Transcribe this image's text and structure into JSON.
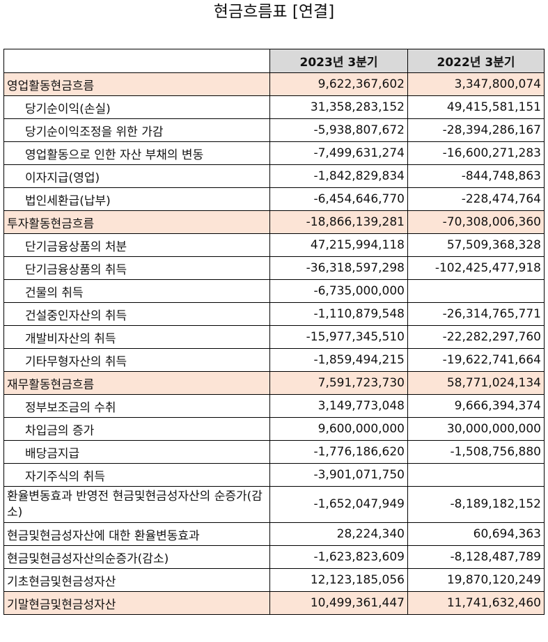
{
  "title": "현금흐름표 [연결]",
  "columns": [
    "2023년 3분기",
    "2022년 3분기"
  ],
  "rows": [
    {
      "label": "영업활동현금흐름",
      "v1": "9,622,367,602",
      "v2": "3,347,800,074",
      "section": true
    },
    {
      "label": "당기순이익(손실)",
      "v1": "31,358,283,152",
      "v2": "49,415,581,151",
      "indent": true
    },
    {
      "label": "당기순이익조정을 위한 가감",
      "v1": "-5,938,807,672",
      "v2": "-28,394,286,167",
      "indent": true
    },
    {
      "label": "영업활동으로 인한 자산 부채의 변동",
      "v1": "-7,499,631,274",
      "v2": "-16,600,271,283",
      "indent": true
    },
    {
      "label": "이자지급(영업)",
      "v1": "-1,842,829,834",
      "v2": "-844,748,863",
      "indent": true
    },
    {
      "label": "법인세환급(납부)",
      "v1": "-6,454,646,770",
      "v2": "-228,474,764",
      "indent": true
    },
    {
      "label": "투자활동현금흐름",
      "v1": "-18,866,139,281",
      "v2": "-70,308,006,360",
      "section": true
    },
    {
      "label": "단기금융상품의 처분",
      "v1": "47,215,994,118",
      "v2": "57,509,368,328",
      "indent": true
    },
    {
      "label": "단기금융상품의 취득",
      "v1": "-36,318,597,298",
      "v2": "-102,425,477,918",
      "indent": true
    },
    {
      "label": "건물의 취득",
      "v1": "-6,735,000,000",
      "v2": "",
      "indent": true
    },
    {
      "label": "건설중인자산의 취득",
      "v1": "-1,110,879,548",
      "v2": "-26,314,765,771",
      "indent": true
    },
    {
      "label": "개발비자산의 취득",
      "v1": "-15,977,345,510",
      "v2": "-22,282,297,760",
      "indent": true
    },
    {
      "label": "기타무형자산의 취득",
      "v1": "-1,859,494,215",
      "v2": "-19,622,741,664",
      "indent": true
    },
    {
      "label": "재무활동현금흐름",
      "v1": "7,591,723,730",
      "v2": "58,771,024,134",
      "section": true
    },
    {
      "label": "정부보조금의 수취",
      "v1": "3,149,773,048",
      "v2": "9,666,394,374",
      "indent": true
    },
    {
      "label": "차입금의 증가",
      "v1": "9,600,000,000",
      "v2": "30,000,000,000",
      "indent": true
    },
    {
      "label": "배당금지급",
      "v1": "-1,776,186,620",
      "v2": "-1,508,756,880",
      "indent": true
    },
    {
      "label": "자기주식의 취득",
      "v1": "-3,901,071,750",
      "v2": "",
      "indent": true
    },
    {
      "label": "환율변동효과 반영전 현금및현금성자산의 순증가(감소)",
      "v1": "-1,652,047,949",
      "v2": "-8,189,182,152",
      "tall": true
    },
    {
      "label": "현금및현금성자산에 대한 환율변동효과",
      "v1": "28,224,340",
      "v2": "60,694,363"
    },
    {
      "label": "현금및현금성자산의순증가(감소)",
      "v1": "-1,623,823,609",
      "v2": "-8,128,487,789"
    },
    {
      "label": "기초현금및현금성자산",
      "v1": "12,123,185,056",
      "v2": "19,870,120,249"
    },
    {
      "label": "기말현금및현금성자산",
      "v1": "10,499,361,447",
      "v2": "11,741,632,460",
      "section": true
    }
  ]
}
